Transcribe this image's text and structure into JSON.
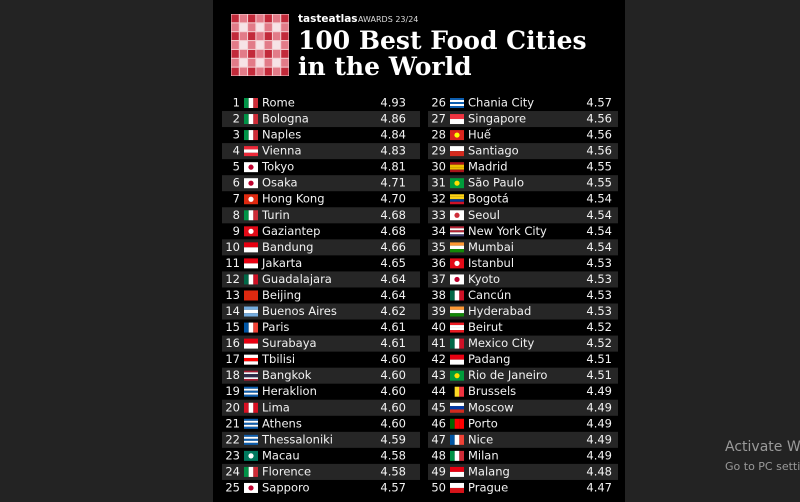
{
  "header": {
    "brand": "tasteatlas",
    "awards": "AWARDS 23/24",
    "title_line1": "100 Best Food Cities",
    "title_line2": "in the World"
  },
  "table": {
    "rows": [
      [
        1,
        "Rome",
        "4.93"
      ],
      [
        2,
        "Bologna",
        "4.86"
      ],
      [
        3,
        "Naples",
        "4.84"
      ],
      [
        4,
        "Vienna",
        "4.83"
      ],
      [
        5,
        "Tokyo",
        "4.81"
      ],
      [
        6,
        "Osaka",
        "4.71"
      ],
      [
        7,
        "Hong Kong",
        "4.70"
      ],
      [
        8,
        "Turin",
        "4.68"
      ],
      [
        9,
        "Gaziantep",
        "4.68"
      ],
      [
        10,
        "Bandung",
        "4.66"
      ],
      [
        11,
        "Jakarta",
        "4.65"
      ],
      [
        12,
        "Guadalajara",
        "4.64"
      ],
      [
        13,
        "Beijing",
        "4.64"
      ],
      [
        14,
        "Buenos Aires",
        "4.62"
      ],
      [
        15,
        "Paris",
        "4.61"
      ],
      [
        16,
        "Surabaya",
        "4.61"
      ],
      [
        17,
        "Tbilisi",
        "4.60"
      ],
      [
        18,
        "Bangkok",
        "4.60"
      ],
      [
        19,
        "Heraklion",
        "4.60"
      ],
      [
        20,
        "Lima",
        "4.60"
      ],
      [
        21,
        "Athens",
        "4.60"
      ],
      [
        22,
        "Thessaloniki",
        "4.59"
      ],
      [
        23,
        "Macau",
        "4.58"
      ],
      [
        24,
        "Florence",
        "4.58"
      ],
      [
        25,
        "Sapporo",
        "4.57"
      ],
      [
        26,
        "Chania City",
        "4.57"
      ],
      [
        27,
        "Singapore",
        "4.56"
      ],
      [
        28,
        "Huế",
        "4.56"
      ],
      [
        29,
        "Santiago",
        "4.56"
      ],
      [
        30,
        "Madrid",
        "4.55"
      ],
      [
        31,
        "São Paulo",
        "4.55"
      ],
      [
        32,
        "Bogotá",
        "4.54"
      ],
      [
        33,
        "Seoul",
        "4.54"
      ],
      [
        34,
        "New York City",
        "4.54"
      ],
      [
        35,
        "Mumbai",
        "4.54"
      ],
      [
        36,
        "Istanbul",
        "4.53"
      ],
      [
        37,
        "Kyoto",
        "4.53"
      ],
      [
        38,
        "Cancún",
        "4.53"
      ],
      [
        39,
        "Hyderabad",
        "4.53"
      ],
      [
        40,
        "Beirut",
        "4.52"
      ],
      [
        41,
        "Mexico City",
        "4.52"
      ],
      [
        42,
        "Padang",
        "4.51"
      ],
      [
        43,
        "Rio de Janeiro",
        "4.51"
      ],
      [
        44,
        "Brussels",
        "4.49"
      ],
      [
        45,
        "Moscow",
        "4.49"
      ],
      [
        46,
        "Porto",
        "4.49"
      ],
      [
        47,
        "Nice",
        "4.49"
      ],
      [
        48,
        "Milan",
        "4.49"
      ],
      [
        49,
        "Malang",
        "4.48"
      ],
      [
        50,
        "Prague",
        "4.47"
      ]
    ]
  },
  "watermark": {
    "line1": "Activate W",
    "line2": "Go to PC setti"
  }
}
